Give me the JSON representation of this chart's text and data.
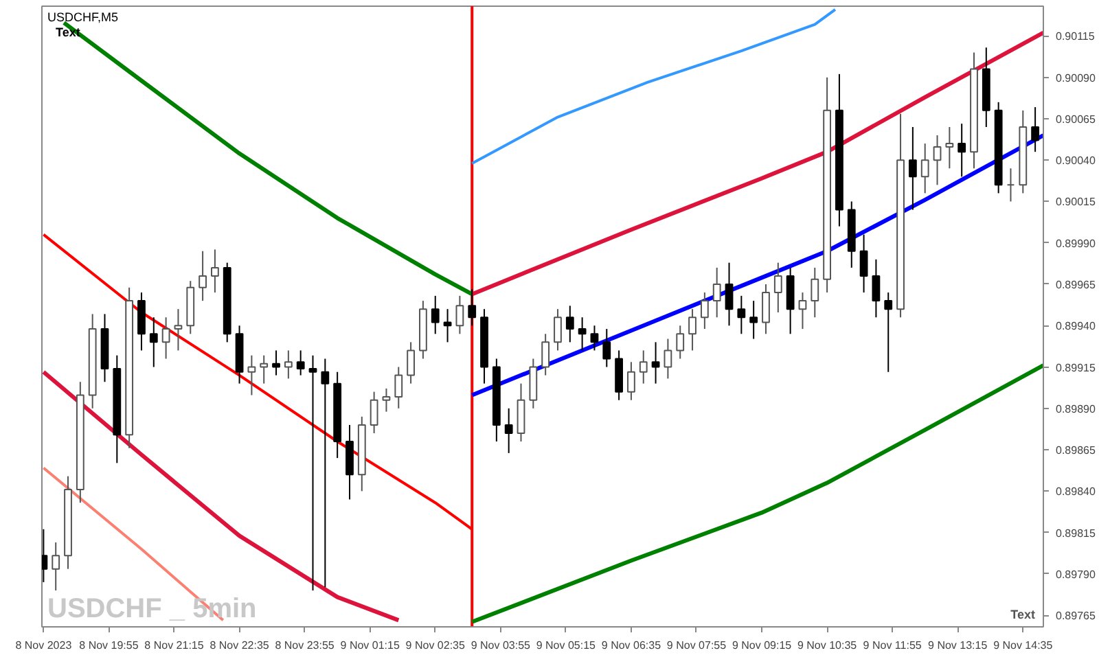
{
  "chart_data": {
    "type": "candlestick",
    "title": "USDCHF,M5",
    "annotations": [
      "Text",
      "USDCHF _ 5min",
      "Text"
    ],
    "x": [
      "2023-11-08T18:35",
      "2023-11-08T18:50",
      "2023-11-08T19:05",
      "2023-11-08T19:20",
      "2023-11-08T19:35",
      "2023-11-08T19:50",
      "2023-11-08T20:05",
      "2023-11-08T20:20",
      "2023-11-08T20:35",
      "2023-11-08T20:50",
      "2023-11-08T21:05",
      "2023-11-08T21:20",
      "2023-11-08T21:35",
      "2023-11-08T21:50",
      "2023-11-08T22:05",
      "2023-11-08T22:20",
      "2023-11-08T22:35",
      "2023-11-08T22:50",
      "2023-11-08T23:05",
      "2023-11-08T23:20",
      "2023-11-08T23:35",
      "2023-11-08T23:50",
      "2023-11-09T00:05",
      "2023-11-09T00:20",
      "2023-11-09T00:35",
      "2023-11-09T00:50",
      "2023-11-09T01:05",
      "2023-11-09T01:20",
      "2023-11-09T01:35",
      "2023-11-09T01:50",
      "2023-11-09T02:05",
      "2023-11-09T02:20",
      "2023-11-09T02:35",
      "2023-11-09T02:50",
      "2023-11-09T03:05",
      "2023-11-09T03:20",
      "2023-11-09T03:35",
      "2023-11-09T03:50",
      "2023-11-09T04:05",
      "2023-11-09T04:20",
      "2023-11-09T04:35",
      "2023-11-09T04:50",
      "2023-11-09T05:05",
      "2023-11-09T05:20",
      "2023-11-09T05:35",
      "2023-11-09T05:50",
      "2023-11-09T06:05",
      "2023-11-09T06:20",
      "2023-11-09T06:35",
      "2023-11-09T06:50",
      "2023-11-09T07:05",
      "2023-11-09T07:20",
      "2023-11-09T07:35",
      "2023-11-09T07:50",
      "2023-11-09T08:05",
      "2023-11-09T08:20",
      "2023-11-09T08:35",
      "2023-11-09T08:50",
      "2023-11-09T09:05",
      "2023-11-09T09:20",
      "2023-11-09T09:35",
      "2023-11-09T09:50",
      "2023-11-09T10:05",
      "2023-11-09T10:20",
      "2023-11-09T10:35",
      "2023-11-09T10:50",
      "2023-11-09T11:05",
      "2023-11-09T11:20",
      "2023-11-09T11:35",
      "2023-11-09T11:50",
      "2023-11-09T12:05",
      "2023-11-09T12:20",
      "2023-11-09T12:35",
      "2023-11-09T12:50",
      "2023-11-09T13:05",
      "2023-11-09T13:20",
      "2023-11-09T13:35",
      "2023-11-09T13:50",
      "2023-11-09T14:05",
      "2023-11-09T14:20",
      "2023-11-09T14:35",
      "2023-11-09T14:50"
    ],
    "ohlc": [
      [
        0.89801,
        0.89817,
        0.89785,
        0.89793
      ],
      [
        0.89793,
        0.89809,
        0.8978,
        0.89801
      ],
      [
        0.89801,
        0.89849,
        0.89793,
        0.89841
      ],
      [
        0.89841,
        0.89906,
        0.89833,
        0.89898
      ],
      [
        0.89898,
        0.89947,
        0.8989,
        0.89938
      ],
      [
        0.89938,
        0.89947,
        0.89906,
        0.89914
      ],
      [
        0.89914,
        0.89922,
        0.89857,
        0.89874
      ],
      [
        0.89874,
        0.89963,
        0.89866,
        0.89955
      ],
      [
        0.89955,
        0.8996,
        0.89925,
        0.89935
      ],
      [
        0.89935,
        0.89945,
        0.89915,
        0.8993
      ],
      [
        0.8993,
        0.89945,
        0.8992,
        0.89938
      ],
      [
        0.89938,
        0.8995,
        0.89925,
        0.8994
      ],
      [
        0.8994,
        0.89967,
        0.89935,
        0.89963
      ],
      [
        0.89963,
        0.89985,
        0.89955,
        0.8997
      ],
      [
        0.8997,
        0.89986,
        0.8996,
        0.89975
      ],
      [
        0.89975,
        0.89978,
        0.8993,
        0.89935
      ],
      [
        0.89935,
        0.8994,
        0.89905,
        0.89912
      ],
      [
        0.89912,
        0.89922,
        0.89898,
        0.89915
      ],
      [
        0.89915,
        0.89922,
        0.89905,
        0.89917
      ],
      [
        0.89917,
        0.89925,
        0.8991,
        0.89915
      ],
      [
        0.89915,
        0.89925,
        0.89908,
        0.89918
      ],
      [
        0.89918,
        0.89925,
        0.8991,
        0.89914
      ],
      [
        0.89914,
        0.89922,
        0.8978,
        0.89912
      ],
      [
        0.89912,
        0.8992,
        0.89782,
        0.89905
      ],
      [
        0.89905,
        0.89912,
        0.8986,
        0.8987
      ],
      [
        0.8987,
        0.8988,
        0.89835,
        0.8985
      ],
      [
        0.8985,
        0.89885,
        0.8984,
        0.8988
      ],
      [
        0.8988,
        0.899,
        0.89875,
        0.89895
      ],
      [
        0.89895,
        0.89902,
        0.89888,
        0.89897
      ],
      [
        0.89897,
        0.89915,
        0.8989,
        0.8991
      ],
      [
        0.8991,
        0.8993,
        0.89905,
        0.89925
      ],
      [
        0.89925,
        0.89955,
        0.8992,
        0.8995
      ],
      [
        0.8995,
        0.89958,
        0.89935,
        0.89942
      ],
      [
        0.89942,
        0.8995,
        0.8993,
        0.8994
      ],
      [
        0.8994,
        0.89958,
        0.89935,
        0.89952
      ],
      [
        0.89952,
        0.89962,
        0.8994,
        0.89945
      ],
      [
        0.89945,
        0.8995,
        0.89905,
        0.89915
      ],
      [
        0.89915,
        0.8992,
        0.8987,
        0.8988
      ],
      [
        0.8988,
        0.8989,
        0.89863,
        0.89875
      ],
      [
        0.89875,
        0.89905,
        0.8987,
        0.89895
      ],
      [
        0.89895,
        0.8992,
        0.8989,
        0.89915
      ],
      [
        0.89915,
        0.89935,
        0.8991,
        0.8993
      ],
      [
        0.8993,
        0.8995,
        0.89925,
        0.89945
      ],
      [
        0.89945,
        0.89952,
        0.8993,
        0.89938
      ],
      [
        0.89938,
        0.89945,
        0.89925,
        0.89935
      ],
      [
        0.89935,
        0.8994,
        0.89925,
        0.8993
      ],
      [
        0.8993,
        0.89938,
        0.89915,
        0.8992
      ],
      [
        0.8992,
        0.89925,
        0.89895,
        0.899
      ],
      [
        0.899,
        0.89918,
        0.89895,
        0.89912
      ],
      [
        0.89912,
        0.89925,
        0.89905,
        0.89918
      ],
      [
        0.89918,
        0.8993,
        0.89905,
        0.89915
      ],
      [
        0.89915,
        0.89932,
        0.89908,
        0.89925
      ],
      [
        0.89925,
        0.8994,
        0.8992,
        0.89935
      ],
      [
        0.89935,
        0.8995,
        0.89925,
        0.89945
      ],
      [
        0.89945,
        0.8996,
        0.89938,
        0.89955
      ],
      [
        0.89955,
        0.89975,
        0.89945,
        0.89965
      ],
      [
        0.89965,
        0.89978,
        0.8994,
        0.8995
      ],
      [
        0.8995,
        0.89958,
        0.89935,
        0.89945
      ],
      [
        0.89945,
        0.89955,
        0.89932,
        0.89942
      ],
      [
        0.89942,
        0.89965,
        0.89935,
        0.8996
      ],
      [
        0.8996,
        0.89978,
        0.89948,
        0.8997
      ],
      [
        0.8997,
        0.89975,
        0.89935,
        0.8995
      ],
      [
        0.8995,
        0.8996,
        0.89938,
        0.89955
      ],
      [
        0.89955,
        0.89975,
        0.89945,
        0.89968
      ],
      [
        0.89968,
        0.9009,
        0.8996,
        0.9007
      ],
      [
        0.9007,
        0.90092,
        0.9,
        0.9001
      ],
      [
        0.9001,
        0.90015,
        0.89975,
        0.89985
      ],
      [
        0.89985,
        0.89995,
        0.8996,
        0.8997
      ],
      [
        0.8997,
        0.8998,
        0.89945,
        0.89955
      ],
      [
        0.89955,
        0.8996,
        0.89912,
        0.8995
      ],
      [
        0.8995,
        0.90068,
        0.89945,
        0.9004
      ],
      [
        0.9004,
        0.9006,
        0.9001,
        0.9003
      ],
      [
        0.9003,
        0.9005,
        0.9002,
        0.9004
      ],
      [
        0.9004,
        0.90055,
        0.90025,
        0.90048
      ],
      [
        0.90048,
        0.9006,
        0.90035,
        0.9005
      ],
      [
        0.9005,
        0.90062,
        0.9003,
        0.90045
      ],
      [
        0.90045,
        0.90105,
        0.90035,
        0.90095
      ],
      [
        0.90095,
        0.90108,
        0.9006,
        0.9007
      ],
      [
        0.9007,
        0.90075,
        0.9002,
        0.90025
      ],
      [
        0.90025,
        0.90035,
        0.90015,
        0.90025
      ],
      [
        0.90025,
        0.9007,
        0.9002,
        0.9006
      ],
      [
        0.9006,
        0.90072,
        0.90045,
        0.90052
      ]
    ],
    "series": [
      {
        "type": "line",
        "color": "#008000",
        "x": [
          "2023-11-08T19:00",
          "2023-11-08T20:35",
          "2023-11-08T22:35",
          "2023-11-09T00:35",
          "2023-11-09T02:35",
          "2023-11-09T03:20"
        ],
        "values": [
          0.90123,
          0.90088,
          0.90044,
          0.90005,
          0.89971,
          0.89959
        ]
      },
      {
        "type": "line",
        "color": "#ff0000",
        "x": [
          "2023-11-08T18:35",
          "2023-11-08T20:35",
          "2023-11-08T22:35",
          "2023-11-09T00:35",
          "2023-11-09T02:35",
          "2023-11-09T03:20"
        ],
        "values": [
          0.89995,
          0.89948,
          0.8991,
          0.8987,
          0.89833,
          0.89817
        ]
      },
      {
        "type": "line",
        "color": "#dc143c",
        "x": [
          "2023-11-08T18:35",
          "2023-11-08T20:35",
          "2023-11-08T22:35",
          "2023-11-09T00:35",
          "2023-11-09T01:50"
        ],
        "values": [
          0.89912,
          0.89862,
          0.89813,
          0.89776,
          0.89762
        ]
      },
      {
        "type": "line",
        "color": "#fa8072",
        "x": [
          "2023-11-08T18:35",
          "2023-11-08T20:35",
          "2023-11-08T22:15"
        ],
        "values": [
          0.89854,
          0.89805,
          0.89762
        ]
      },
      {
        "type": "line",
        "color": "#3399ff",
        "x": [
          "2023-11-09T03:20",
          "2023-11-09T05:05",
          "2023-11-09T06:55",
          "2023-11-09T08:50",
          "2023-11-09T10:20",
          "2023-11-09T10:45"
        ],
        "values": [
          0.90038,
          0.90066,
          0.90087,
          0.90106,
          0.90122,
          0.90131
        ]
      },
      {
        "type": "line",
        "color": "#dc143c",
        "x": [
          "2023-11-09T03:20",
          "2023-11-09T06:35",
          "2023-11-09T09:15",
          "2023-11-09T10:35",
          "2023-11-09T12:35",
          "2023-11-09T15:00"
        ],
        "values": [
          0.89959,
          0.89998,
          0.90029,
          0.90045,
          0.90078,
          0.90117
        ]
      },
      {
        "type": "line",
        "color": "#0000ff",
        "x": [
          "2023-11-09T03:20",
          "2023-11-09T06:35",
          "2023-11-09T09:15",
          "2023-11-09T10:35",
          "2023-11-09T12:35",
          "2023-11-09T15:00"
        ],
        "values": [
          0.89898,
          0.89937,
          0.89969,
          0.89985,
          0.90016,
          0.90055
        ]
      },
      {
        "type": "line",
        "color": "#008000",
        "x": [
          "2023-11-09T03:20",
          "2023-11-09T06:35",
          "2023-11-09T09:15",
          "2023-11-09T10:35",
          "2023-11-09T12:35",
          "2023-11-09T15:00"
        ],
        "values": [
          0.89761,
          0.89798,
          0.89827,
          0.89845,
          0.89877,
          0.89916
        ]
      }
    ],
    "ref_lines": [
      {
        "axis": "x",
        "value": "2023-11-09T03:20",
        "color": "#ff0000"
      }
    ],
    "xlim": [
      "2023-11-08T18:33",
      "2023-11-09T15:00"
    ],
    "xticks": [
      {
        "value": "2023-11-08T18:35",
        "label": "8 Nov 2023"
      },
      {
        "value": "2023-11-08T19:55",
        "label": "8 Nov 19:55"
      },
      {
        "value": "2023-11-08T21:15",
        "label": "8 Nov 21:15"
      },
      {
        "value": "2023-11-08T22:35",
        "label": "8 Nov 22:35"
      },
      {
        "value": "2023-11-08T23:55",
        "label": "8 Nov 23:55"
      },
      {
        "value": "2023-11-09T01:15",
        "label": "9 Nov 01:15"
      },
      {
        "value": "2023-11-09T02:35",
        "label": "9 Nov 02:35"
      },
      {
        "value": "2023-11-09T03:55",
        "label": "9 Nov 03:55"
      },
      {
        "value": "2023-11-09T05:15",
        "label": "9 Nov 05:15"
      },
      {
        "value": "2023-11-09T06:35",
        "label": "9 Nov 06:35"
      },
      {
        "value": "2023-11-09T07:55",
        "label": "9 Nov 07:55"
      },
      {
        "value": "2023-11-09T09:15",
        "label": "9 Nov 09:15"
      },
      {
        "value": "2023-11-09T10:35",
        "label": "9 Nov 10:35"
      },
      {
        "value": "2023-11-09T11:55",
        "label": "9 Nov 11:55"
      },
      {
        "value": "2023-11-09T13:15",
        "label": "9 Nov 13:15"
      },
      {
        "value": "2023-11-09T14:35",
        "label": "9 Nov 14:35"
      }
    ],
    "ylim": [
      0.89758,
      0.90133
    ],
    "yticks": [
      {
        "value": 0.90115,
        "label": "0.90115"
      },
      {
        "value": 0.9009,
        "label": "0.90090"
      },
      {
        "value": 0.90065,
        "label": "0.90065"
      },
      {
        "value": 0.9004,
        "label": "0.90040"
      },
      {
        "value": 0.90015,
        "label": "0.90015"
      },
      {
        "value": 0.8999,
        "label": "0.89990"
      },
      {
        "value": 0.89965,
        "label": "0.89965"
      },
      {
        "value": 0.8994,
        "label": "0.89940"
      },
      {
        "value": 0.89915,
        "label": "0.89915"
      },
      {
        "value": 0.8989,
        "label": "0.89890"
      },
      {
        "value": 0.89865,
        "label": "0.89865"
      },
      {
        "value": 0.8984,
        "label": "0.89840"
      },
      {
        "value": 0.89815,
        "label": "0.89815"
      },
      {
        "value": 0.8979,
        "label": "0.89790"
      },
      {
        "value": 0.89765,
        "label": "0.89765"
      }
    ]
  }
}
